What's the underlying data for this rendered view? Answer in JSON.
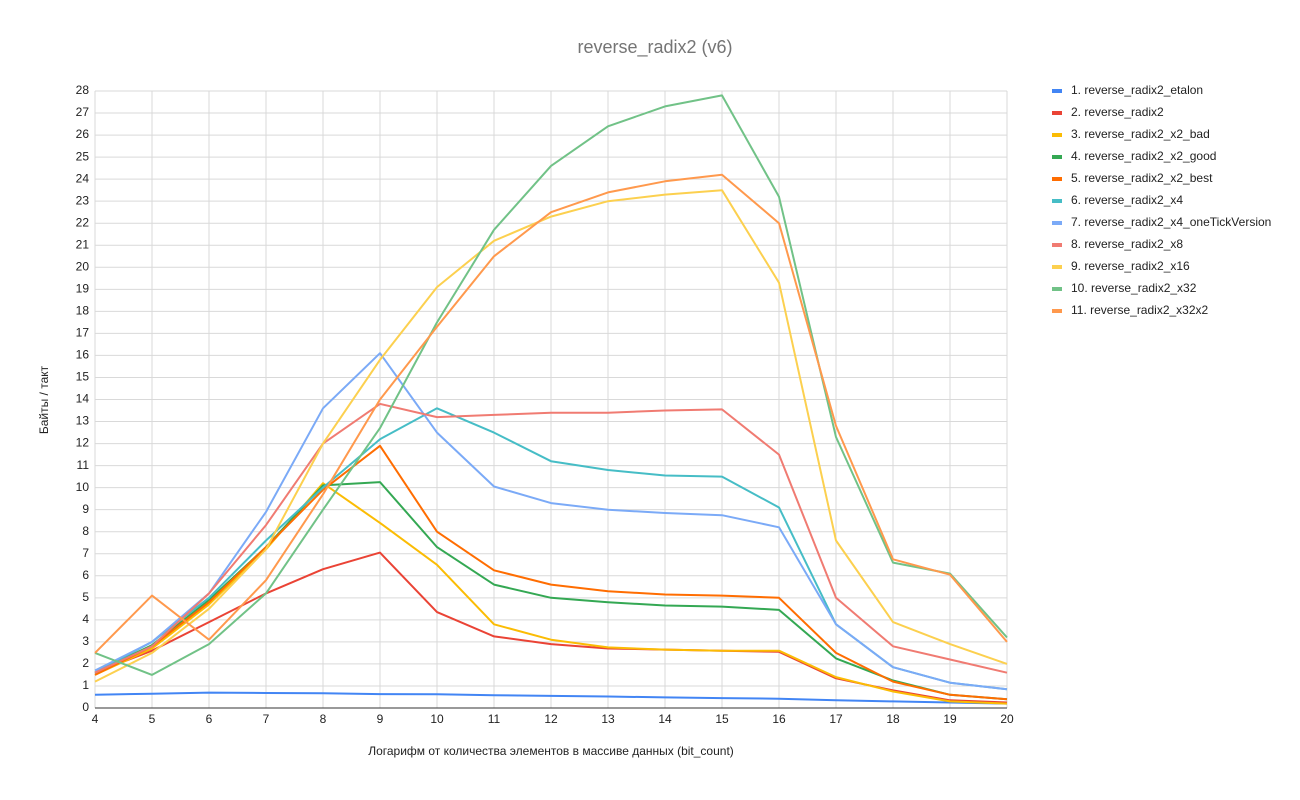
{
  "chart_data": {
    "type": "line",
    "title": "reverse_radix2 (v6)",
    "x_label": "Логарифм от количества элементов в массиве данных (bit_count)",
    "y_label": "Байты / такт",
    "x": [
      4,
      5,
      6,
      7,
      8,
      9,
      10,
      11,
      12,
      13,
      14,
      15,
      16,
      17,
      18,
      19,
      20
    ],
    "xlim": [
      4,
      20
    ],
    "xticks": [
      4,
      5,
      6,
      7,
      8,
      9,
      10,
      11,
      12,
      13,
      14,
      15,
      16,
      17,
      18,
      19,
      20
    ],
    "ylim": [
      0,
      28
    ],
    "yticks": [
      0,
      1,
      2,
      3,
      4,
      5,
      6,
      7,
      8,
      9,
      10,
      11,
      12,
      13,
      14,
      15,
      16,
      17,
      18,
      19,
      20,
      21,
      22,
      23,
      24,
      25,
      26,
      27,
      28
    ],
    "grid": true,
    "legend": "right",
    "series": [
      {
        "name": "1. reverse_radix2_etalon",
        "color": "#4285f4",
        "values": [
          0.6,
          0.65,
          0.7,
          0.68,
          0.67,
          0.63,
          0.62,
          0.58,
          0.55,
          0.52,
          0.48,
          0.45,
          0.42,
          0.35,
          0.3,
          0.25,
          0.2
        ]
      },
      {
        "name": "2. reverse_radix2",
        "color": "#ea4335",
        "values": [
          1.6,
          2.6,
          3.9,
          5.2,
          6.3,
          7.05,
          4.35,
          3.25,
          2.9,
          2.7,
          2.65,
          2.6,
          2.55,
          1.35,
          0.8,
          0.35,
          0.25
        ]
      },
      {
        "name": "3. reverse_radix2_x2_bad",
        "color": "#fbbc04",
        "values": [
          1.5,
          2.7,
          4.7,
          7.2,
          10.2,
          8.4,
          6.5,
          3.8,
          3.1,
          2.75,
          2.65,
          2.6,
          2.6,
          1.4,
          0.75,
          0.3,
          0.2
        ]
      },
      {
        "name": "4. reverse_radix2_x2_good",
        "color": "#34a853",
        "values": [
          1.6,
          2.85,
          4.9,
          7.3,
          10.1,
          10.25,
          7.3,
          5.6,
          5.0,
          4.8,
          4.65,
          4.6,
          4.45,
          2.25,
          1.25,
          0.6,
          0.4
        ]
      },
      {
        "name": "5. reverse_radix2_x2_best",
        "color": "#ff6d01",
        "values": [
          1.5,
          2.8,
          4.8,
          7.3,
          9.9,
          11.9,
          8.0,
          6.25,
          5.6,
          5.3,
          5.15,
          5.1,
          5.0,
          2.5,
          1.2,
          0.6,
          0.4
        ]
      },
      {
        "name": "6. reverse_radix2_x4",
        "color": "#46bdc6",
        "values": [
          1.6,
          3.0,
          5.0,
          7.6,
          10.0,
          12.2,
          13.6,
          12.5,
          11.2,
          10.8,
          10.55,
          10.5,
          9.1,
          3.8,
          1.85,
          1.15,
          0.85
        ]
      },
      {
        "name": "7. reverse_radix2_x4_oneTickVersion",
        "color": "#7baaf7",
        "values": [
          1.7,
          3.0,
          5.2,
          8.9,
          13.6,
          16.1,
          12.5,
          10.05,
          9.3,
          9.0,
          8.85,
          8.75,
          8.2,
          3.8,
          1.85,
          1.15,
          0.85
        ]
      },
      {
        "name": "8. reverse_radix2_x8",
        "color": "#f07b72",
        "values": [
          1.6,
          2.8,
          5.2,
          8.3,
          12.0,
          13.8,
          13.2,
          13.3,
          13.4,
          13.4,
          13.5,
          13.55,
          11.5,
          5.0,
          2.8,
          2.2,
          1.6
        ]
      },
      {
        "name": "9. reverse_radix2_x16",
        "color": "#fcd04f",
        "values": [
          1.2,
          2.5,
          4.5,
          7.2,
          12.0,
          15.8,
          19.1,
          21.2,
          22.3,
          23.0,
          23.3,
          23.5,
          19.3,
          7.6,
          3.9,
          2.9,
          2.0
        ]
      },
      {
        "name": "10. reverse_radix2_x32",
        "color": "#71c287",
        "values": [
          2.5,
          1.5,
          2.9,
          5.2,
          9.0,
          12.7,
          17.5,
          21.7,
          24.6,
          26.4,
          27.3,
          27.8,
          23.2,
          12.3,
          6.6,
          6.1,
          3.2
        ]
      },
      {
        "name": "11. reverse_radix2_x32x2",
        "color": "#ff994d",
        "values": [
          2.5,
          5.1,
          3.1,
          5.8,
          9.7,
          14.0,
          17.3,
          20.5,
          22.5,
          23.4,
          23.9,
          24.2,
          22.0,
          12.8,
          6.75,
          6.05,
          3.0
        ]
      }
    ]
  }
}
